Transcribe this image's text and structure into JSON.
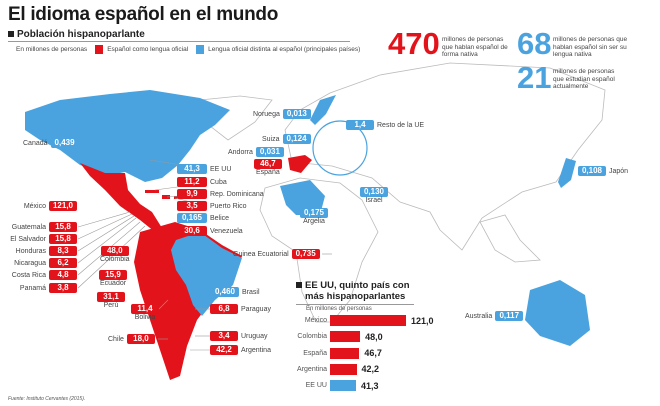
{
  "header": {
    "title": "El idioma español en el mundo",
    "subtitle": "Población hispanoparlante",
    "unit": "En millones de personas",
    "legend": [
      {
        "label": "Español como lengua oficial",
        "color": "#e3131b"
      },
      {
        "label": "Lengua oficial distinta al español (principales países)",
        "color": "#4aa3df"
      }
    ]
  },
  "stats": [
    {
      "value": "470",
      "text": "millones de personas que hablan español de forma nativa",
      "color": "#e3131b"
    },
    {
      "value": "68",
      "text": "millones de personas que hablan español sin ser su lengua nativa",
      "color": "#4aa3df"
    },
    {
      "value": "21",
      "text": "millones de personas que estudian español actualmente",
      "color": "#4aa3df"
    }
  ],
  "labels": [
    {
      "name": "Canadá",
      "value": "0,439",
      "type": "other"
    },
    {
      "name": "Noruega",
      "value": "0,013",
      "type": "other"
    },
    {
      "name": "Resto de la UE",
      "value": "1,4",
      "type": "other"
    },
    {
      "name": "Suiza",
      "value": "0,124",
      "type": "other"
    },
    {
      "name": "Andorra",
      "value": "0,031",
      "type": "other"
    },
    {
      "name": "España",
      "value": "46,7",
      "type": "official"
    },
    {
      "name": "EE UU",
      "value": "41,3",
      "type": "other"
    },
    {
      "name": "Cuba",
      "value": "11,2",
      "type": "official"
    },
    {
      "name": "Rep. Dominicana",
      "value": "9,9",
      "type": "official"
    },
    {
      "name": "Puerto Rico",
      "value": "3,5",
      "type": "official"
    },
    {
      "name": "Belice",
      "value": "0,165",
      "type": "other"
    },
    {
      "name": "Venezuela",
      "value": "30,6",
      "type": "official"
    },
    {
      "name": "México",
      "value": "121,0",
      "type": "official"
    },
    {
      "name": "Guatemala",
      "value": "15,8",
      "type": "official"
    },
    {
      "name": "El Salvador",
      "value": "15,8",
      "type": "official"
    },
    {
      "name": "Honduras",
      "value": "8,3",
      "type": "official"
    },
    {
      "name": "Nicaragua",
      "value": "6,2",
      "type": "official"
    },
    {
      "name": "Costa Rica",
      "value": "4,8",
      "type": "official"
    },
    {
      "name": "Panamá",
      "value": "3,8",
      "type": "official"
    },
    {
      "name": "Colombia",
      "value": "48,0",
      "type": "official"
    },
    {
      "name": "Ecuador",
      "value": "15,9",
      "type": "official"
    },
    {
      "name": "Perú",
      "value": "31,1",
      "type": "official"
    },
    {
      "name": "Bolivia",
      "value": "11,4",
      "type": "official"
    },
    {
      "name": "Chile",
      "value": "18,0",
      "type": "official"
    },
    {
      "name": "Brasil",
      "value": "0,460",
      "type": "other"
    },
    {
      "name": "Paraguay",
      "value": "6,8",
      "type": "official"
    },
    {
      "name": "Uruguay",
      "value": "3,4",
      "type": "official"
    },
    {
      "name": "Argentina",
      "value": "42,2",
      "type": "official"
    },
    {
      "name": "Argelia",
      "value": "0,175",
      "type": "other"
    },
    {
      "name": "Israel",
      "value": "0,130",
      "type": "other"
    },
    {
      "name": "Guinea Ecuatorial",
      "value": "0,735",
      "type": "official"
    },
    {
      "name": "Japón",
      "value": "0,108",
      "type": "other"
    },
    {
      "name": "Australia",
      "value": "0,117",
      "type": "other"
    }
  ],
  "chart_data": {
    "type": "bar",
    "title_line1": "EE UU, quinto país con",
    "title_line2": "más hispanoparlantes",
    "subtitle": "En millones de personas",
    "categories": [
      "México",
      "Colombia",
      "España",
      "Argentina",
      "EE UU"
    ],
    "values": [
      121.0,
      48.0,
      46.7,
      42.2,
      41.3
    ],
    "value_labels": [
      "121,0",
      "48,0",
      "46,7",
      "42,2",
      "41,3"
    ],
    "colors": [
      "#e3131b",
      "#e3131b",
      "#e3131b",
      "#e3131b",
      "#4aa3df"
    ]
  },
  "source": "Fuente: Instituto Cervantes (2015)."
}
